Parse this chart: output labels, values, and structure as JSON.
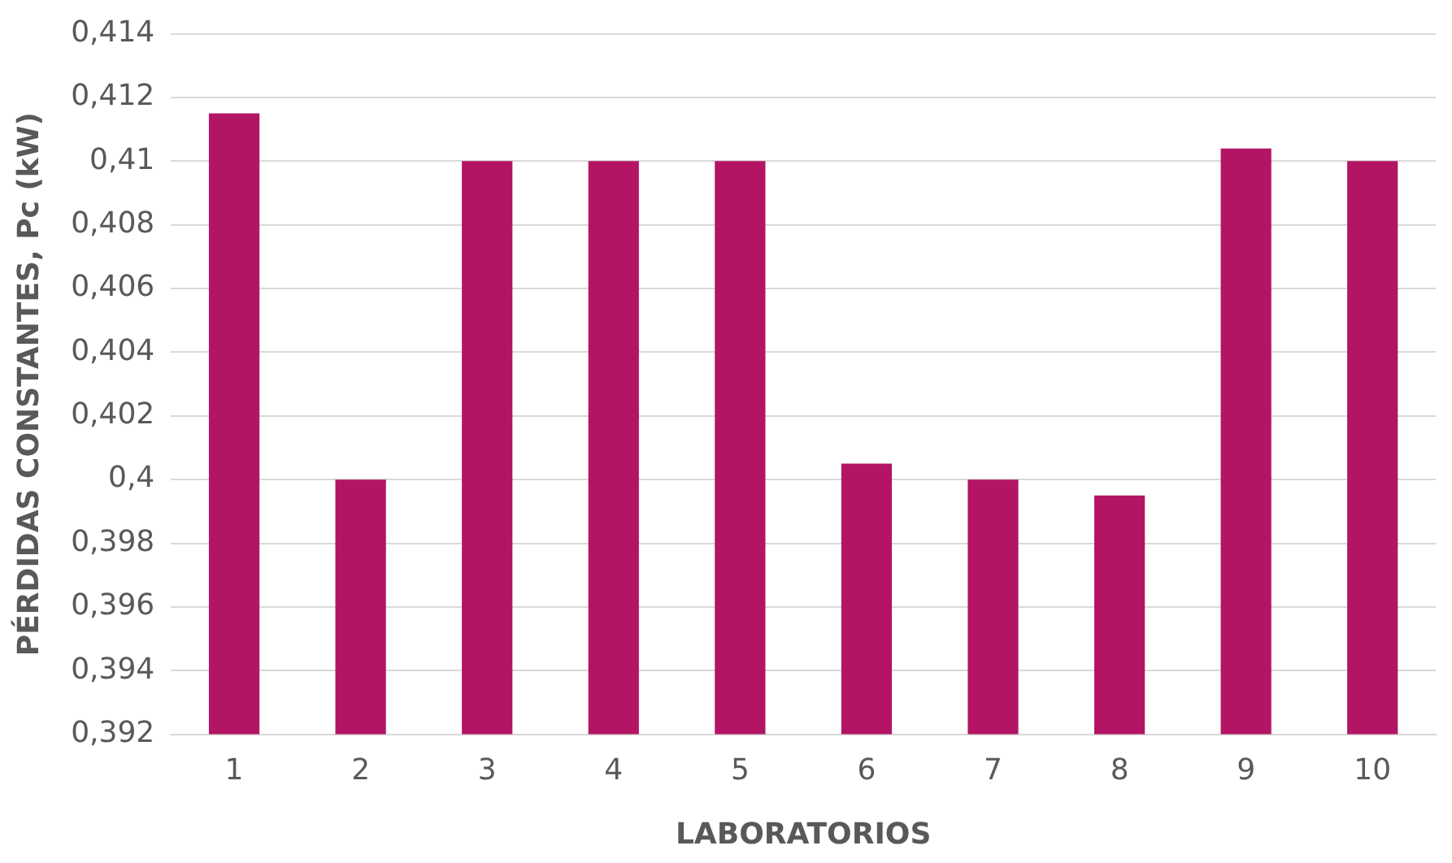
{
  "chart_data": {
    "type": "bar",
    "xlabel": "LABORATORIOS",
    "ylabel": "PÉRDIDAS CONSTANTES, Pc (kW)",
    "categories": [
      "1",
      "2",
      "3",
      "4",
      "5",
      "6",
      "7",
      "8",
      "9",
      "10"
    ],
    "values": [
      0.4115,
      0.4,
      0.41,
      0.41,
      0.41,
      0.4005,
      0.4,
      0.3995,
      0.4104,
      0.41
    ],
    "color": "#b31564",
    "ylim": [
      0.392,
      0.414
    ],
    "yticks": [
      {
        "value": 0.392,
        "label": "0,392"
      },
      {
        "value": 0.394,
        "label": "0,394"
      },
      {
        "value": 0.396,
        "label": "0,396"
      },
      {
        "value": 0.398,
        "label": "0,398"
      },
      {
        "value": 0.4,
        "label": "0,4"
      },
      {
        "value": 0.402,
        "label": "0,402"
      },
      {
        "value": 0.404,
        "label": "0,404"
      },
      {
        "value": 0.406,
        "label": "0,406"
      },
      {
        "value": 0.408,
        "label": "0,408"
      },
      {
        "value": 0.41,
        "label": "0,41"
      },
      {
        "value": 0.412,
        "label": "0,412"
      },
      {
        "value": 0.414,
        "label": "0,414"
      }
    ],
    "grid": "y",
    "legend": false
  }
}
